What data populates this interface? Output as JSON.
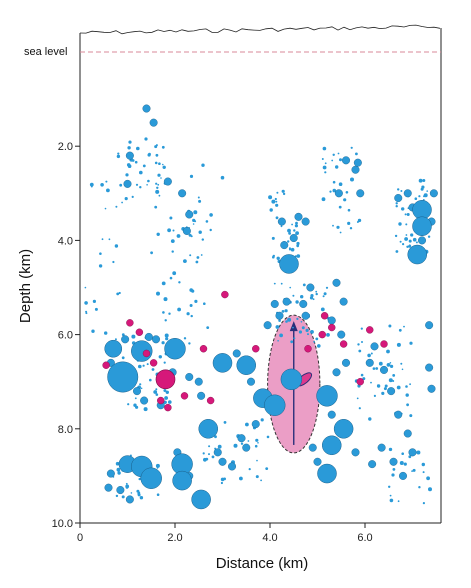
{
  "chart_data": {
    "type": "scatter",
    "title": "",
    "xlabel": "Distance  (km)",
    "ylabel": "Depth  (km)",
    "xlim": [
      0,
      7.6
    ],
    "ylim": [
      0.0,
      10.0
    ],
    "y_inverted": true,
    "x_ticks": [
      {
        "v": 0,
        "label": "0"
      },
      {
        "v": 2,
        "label": "2.0"
      },
      {
        "v": 4,
        "label": "4.0"
      },
      {
        "v": 6,
        "label": "6.0"
      }
    ],
    "y_ticks": [
      {
        "v": 2,
        "label": "2.0"
      },
      {
        "v": 4,
        "label": "4.0"
      },
      {
        "v": 6,
        "label": "6.0"
      },
      {
        "v": 8,
        "label": "8.0"
      },
      {
        "v": 10,
        "label": "10.0"
      }
    ],
    "sea_level": {
      "label": "sea level",
      "depth": 0.0,
      "color": "#d98a9a"
    },
    "colors": {
      "blue": "#2a9ad8",
      "magenta": "#d6187a",
      "ellipse": "#e06aa8"
    },
    "ellipse": {
      "cx": 4.5,
      "cy": 7.05,
      "rx": 0.55,
      "ry": 1.45
    },
    "large_blue": [
      [
        0.7,
        6.3,
        0.18
      ],
      [
        0.9,
        6.9,
        0.32
      ],
      [
        1.3,
        6.35,
        0.22
      ],
      [
        1.0,
        8.75,
        0.18
      ],
      [
        1.3,
        8.8,
        0.22
      ],
      [
        1.5,
        9.05,
        0.22
      ],
      [
        2.0,
        6.3,
        0.22
      ],
      [
        2.15,
        8.75,
        0.22
      ],
      [
        2.15,
        9.1,
        0.2
      ],
      [
        2.55,
        9.5,
        0.2
      ],
      [
        2.7,
        8.0,
        0.2
      ],
      [
        3.0,
        6.6,
        0.2
      ],
      [
        3.5,
        6.65,
        0.2
      ],
      [
        3.85,
        7.35,
        0.2
      ],
      [
        4.1,
        7.5,
        0.22
      ],
      [
        4.4,
        4.5,
        0.2
      ],
      [
        4.45,
        6.95,
        0.22
      ],
      [
        5.2,
        7.3,
        0.22
      ],
      [
        5.3,
        8.35,
        0.2
      ],
      [
        5.55,
        8.0,
        0.2
      ],
      [
        5.2,
        8.95,
        0.2
      ],
      [
        7.2,
        3.35,
        0.2
      ],
      [
        7.2,
        3.7,
        0.2
      ],
      [
        7.1,
        4.3,
        0.2
      ]
    ],
    "mid_blue": [
      [
        1.4,
        1.2
      ],
      [
        1.55,
        1.5
      ],
      [
        1.05,
        2.2
      ],
      [
        1.0,
        2.8
      ],
      [
        1.85,
        2.75
      ],
      [
        2.15,
        3.0
      ],
      [
        2.3,
        3.45
      ],
      [
        2.25,
        3.8
      ],
      [
        0.95,
        6.1
      ],
      [
        0.65,
        6.6
      ],
      [
        1.6,
        6.1
      ],
      [
        1.45,
        6.05
      ],
      [
        1.2,
        7.2
      ],
      [
        1.35,
        7.4
      ],
      [
        1.7,
        7.5
      ],
      [
        1.95,
        6.8
      ],
      [
        2.3,
        6.9
      ],
      [
        2.5,
        7.0
      ],
      [
        2.55,
        7.3
      ],
      [
        3.3,
        6.4
      ],
      [
        3.6,
        7.0
      ],
      [
        3.95,
        5.8
      ],
      [
        4.1,
        5.35
      ],
      [
        4.2,
        5.6
      ],
      [
        4.35,
        5.3
      ],
      [
        4.7,
        5.35
      ],
      [
        4.75,
        5.6
      ],
      [
        4.85,
        5.0
      ],
      [
        4.5,
        3.95
      ],
      [
        4.3,
        4.1
      ],
      [
        4.6,
        3.5
      ],
      [
        4.75,
        3.6
      ],
      [
        4.25,
        3.6
      ],
      [
        5.4,
        4.9
      ],
      [
        5.55,
        5.3
      ],
      [
        5.3,
        5.7
      ],
      [
        5.5,
        6.0
      ],
      [
        5.6,
        6.6
      ],
      [
        5.4,
        6.8
      ],
      [
        5.3,
        7.7
      ],
      [
        5.45,
        3.0
      ],
      [
        5.8,
        2.5
      ],
      [
        5.9,
        3.0
      ],
      [
        5.6,
        2.3
      ],
      [
        5.85,
        2.35
      ],
      [
        6.1,
        6.6
      ],
      [
        6.2,
        6.25
      ],
      [
        6.4,
        6.75
      ],
      [
        6.55,
        7.2
      ],
      [
        6.7,
        7.7
      ],
      [
        6.35,
        8.4
      ],
      [
        6.6,
        8.7
      ],
      [
        6.9,
        8.1
      ],
      [
        7.0,
        8.5
      ],
      [
        7.2,
        4.0
      ],
      [
        7.45,
        3.0
      ],
      [
        6.9,
        3.0
      ],
      [
        6.7,
        3.1
      ],
      [
        7.0,
        3.3
      ],
      [
        7.4,
        3.6
      ],
      [
        7.35,
        5.8
      ],
      [
        7.35,
        6.7
      ],
      [
        7.4,
        7.15
      ],
      [
        0.6,
        9.25
      ],
      [
        0.85,
        9.3
      ],
      [
        0.65,
        8.95
      ],
      [
        1.05,
        9.5
      ],
      [
        2.05,
        8.5
      ],
      [
        2.3,
        9.0
      ],
      [
        2.9,
        8.5
      ],
      [
        3.0,
        8.7
      ],
      [
        3.2,
        8.8
      ],
      [
        3.4,
        8.2
      ],
      [
        3.5,
        8.4
      ],
      [
        3.7,
        7.9
      ],
      [
        4.9,
        8.4
      ],
      [
        5.0,
        8.7
      ],
      [
        5.8,
        8.5
      ],
      [
        6.15,
        8.75
      ],
      [
        6.8,
        9.0
      ]
    ],
    "magenta_large": [
      [
        1.8,
        6.95,
        0.2
      ]
    ],
    "magenta_small": [
      [
        1.05,
        5.75
      ],
      [
        1.25,
        5.95
      ],
      [
        1.4,
        6.4
      ],
      [
        1.55,
        6.6
      ],
      [
        1.7,
        7.4
      ],
      [
        1.85,
        7.55
      ],
      [
        2.2,
        7.3
      ],
      [
        2.6,
        6.3
      ],
      [
        3.05,
        5.15
      ],
      [
        3.7,
        6.3
      ],
      [
        4.8,
        6.3
      ],
      [
        5.1,
        6.0
      ],
      [
        5.3,
        5.85
      ],
      [
        5.55,
        6.2
      ],
      [
        6.1,
        5.9
      ],
      [
        6.4,
        6.2
      ],
      [
        5.9,
        7.0
      ],
      [
        0.55,
        6.65
      ],
      [
        2.75,
        7.4
      ],
      [
        5.15,
        5.6
      ]
    ]
  }
}
